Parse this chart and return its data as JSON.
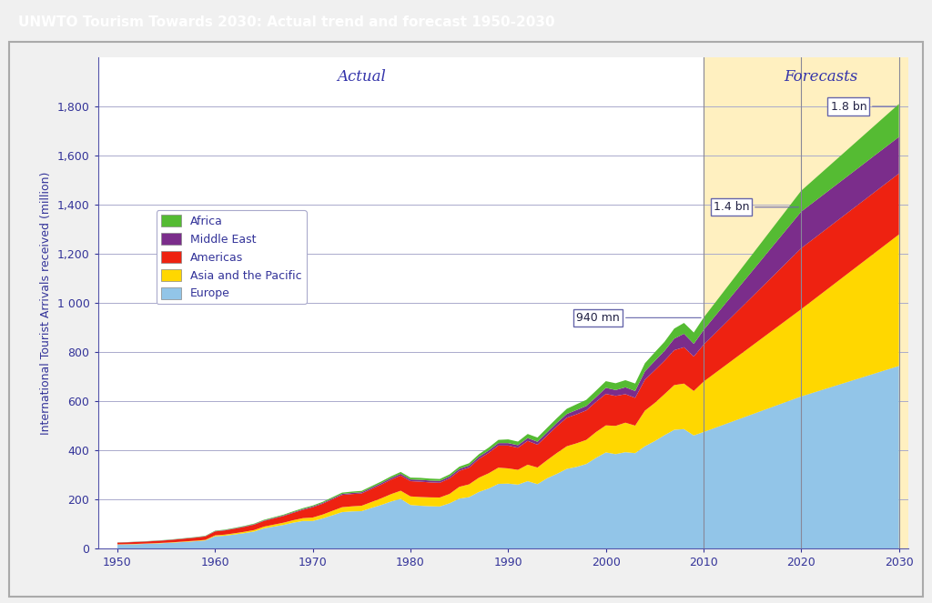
{
  "title": "UNWTO Tourism Towards 2030: Actual trend and forecast 1950-2030",
  "title_bg_color": "#8B1A2A",
  "title_text_color": "#FFFFFF",
  "ylabel": "International Tourist Arrivals received (million)",
  "years": [
    1950,
    1951,
    1952,
    1953,
    1954,
    1955,
    1956,
    1957,
    1958,
    1959,
    1960,
    1961,
    1962,
    1963,
    1964,
    1965,
    1966,
    1967,
    1968,
    1969,
    1970,
    1971,
    1972,
    1973,
    1974,
    1975,
    1976,
    1977,
    1978,
    1979,
    1980,
    1981,
    1982,
    1983,
    1984,
    1985,
    1986,
    1987,
    1988,
    1989,
    1990,
    1991,
    1992,
    1993,
    1994,
    1995,
    1996,
    1997,
    1998,
    1999,
    2000,
    2001,
    2002,
    2003,
    2004,
    2005,
    2006,
    2007,
    2008,
    2009,
    2010,
    2020,
    2030
  ],
  "europe": [
    16.8,
    17.6,
    18.6,
    20.0,
    21.5,
    23.3,
    25.5,
    28.0,
    30.5,
    33.5,
    50.4,
    53.0,
    58.0,
    63.5,
    70.0,
    83.0,
    90.0,
    97.0,
    106.0,
    113.0,
    113.0,
    123.0,
    136.0,
    149.0,
    152.0,
    153.0,
    166.0,
    178.0,
    192.0,
    203.0,
    178.0,
    175.0,
    173.0,
    172.0,
    185.0,
    204.0,
    210.0,
    231.0,
    245.0,
    264.0,
    265.0,
    261.0,
    275.0,
    263.0,
    287.0,
    305.0,
    325.0,
    333.0,
    345.0,
    370.0,
    392.0,
    385.0,
    393.0,
    389.0,
    417.0,
    438.0,
    462.0,
    484.0,
    487.0,
    461.0,
    475.0,
    620.0,
    744.0
  ],
  "asia_pacific": [
    1.0,
    1.1,
    1.2,
    1.3,
    1.4,
    1.5,
    1.7,
    2.0,
    2.2,
    2.5,
    4.0,
    4.5,
    5.0,
    5.5,
    6.0,
    7.0,
    8.0,
    9.0,
    10.0,
    11.5,
    14.0,
    16.0,
    18.0,
    20.0,
    20.5,
    22.0,
    24.0,
    27.0,
    30.0,
    33.0,
    35.0,
    35.5,
    36.0,
    36.5,
    38.0,
    48.0,
    52.0,
    58.0,
    62.0,
    66.0,
    62.0,
    60.0,
    67.0,
    67.5,
    74.0,
    85.0,
    92.0,
    96.0,
    98.0,
    105.0,
    110.0,
    115.0,
    120.0,
    112.0,
    145.0,
    155.0,
    167.0,
    182.0,
    185.0,
    181.0,
    205.0,
    355.0,
    535.0
  ],
  "americas": [
    7.0,
    7.3,
    7.8,
    8.2,
    8.8,
    9.5,
    10.5,
    11.5,
    12.5,
    14.0,
    16.0,
    17.0,
    18.5,
    20.0,
    22.0,
    23.0,
    25.0,
    27.0,
    30.0,
    34.0,
    42.0,
    44.0,
    47.0,
    50.0,
    50.0,
    50.0,
    53.0,
    56.0,
    59.0,
    62.0,
    62.0,
    62.5,
    61.0,
    60.0,
    63.0,
    65.0,
    68.0,
    76.0,
    83.0,
    90.0,
    93.0,
    90.0,
    97.0,
    93.0,
    100.0,
    109.0,
    116.0,
    118.0,
    120.0,
    123.0,
    128.0,
    122.0,
    116.0,
    113.0,
    126.0,
    133.0,
    136.0,
    142.0,
    148.0,
    140.0,
    150.0,
    248.0,
    248.0
  ],
  "middle_east": [
    0.5,
    0.5,
    0.6,
    0.6,
    0.7,
    0.8,
    0.9,
    1.0,
    1.1,
    1.2,
    1.3,
    1.4,
    1.5,
    1.7,
    1.9,
    2.1,
    2.3,
    2.5,
    2.8,
    3.0,
    3.2,
    3.5,
    3.8,
    4.2,
    4.5,
    5.0,
    5.5,
    6.0,
    6.5,
    7.0,
    7.0,
    7.5,
    7.5,
    7.5,
    8.0,
    8.0,
    8.5,
    9.0,
    9.5,
    10.0,
    10.0,
    10.5,
    11.5,
    12.0,
    13.0,
    14.0,
    15.5,
    17.5,
    18.0,
    19.0,
    25.0,
    24.0,
    28.0,
    28.0,
    34.0,
    38.0,
    40.0,
    47.0,
    55.0,
    52.0,
    60.0,
    149.0,
    149.0
  ],
  "africa": [
    0.5,
    0.5,
    0.6,
    0.7,
    0.8,
    0.9,
    1.0,
    1.1,
    1.3,
    1.5,
    1.7,
    1.8,
    2.0,
    2.2,
    2.4,
    2.6,
    2.9,
    3.2,
    3.5,
    3.8,
    3.8,
    4.2,
    4.7,
    5.2,
    5.4,
    5.5,
    6.0,
    6.5,
    7.0,
    7.5,
    7.5,
    8.0,
    7.9,
    7.8,
    8.5,
    9.0,
    9.5,
    10.5,
    12.0,
    13.0,
    15.0,
    14.5,
    16.5,
    17.0,
    18.5,
    19.0,
    21.0,
    23.5,
    25.0,
    26.5,
    27.0,
    27.5,
    29.0,
    30.5,
    33.0,
    35.0,
    37.0,
    41.0,
    44.0,
    46.0,
    50.0,
    85.0,
    134.0
  ],
  "forecast_start_year": 2010,
  "forecast_bg_color": "#FFF0C0",
  "actual_label_color": "#3333AA",
  "forecast_label_color": "#3333AA",
  "europe_color": "#92C5E8",
  "asia_pacific_color": "#FFD700",
  "americas_color": "#EE2211",
  "middle_east_color": "#7B2D8B",
  "africa_color": "#55BB33",
  "legend_labels": [
    "Africa",
    "Middle East",
    "Americas",
    "Asia and the Pacific",
    "Europe"
  ],
  "ylim": [
    0,
    2000
  ],
  "ytick_values": [
    0,
    200,
    400,
    600,
    800,
    1000,
    1200,
    1400,
    1600,
    1800
  ],
  "ytick_labels": [
    "0",
    "200",
    "400",
    "600",
    "800",
    "1 000",
    "1,200",
    "1,400",
    "1,600",
    "1,800"
  ],
  "xticks": [
    1950,
    1960,
    1970,
    1980,
    1990,
    2000,
    2010,
    2020,
    2030
  ],
  "outer_bg_color": "#F0F0F0",
  "plot_bg_color": "#FFFFFF",
  "grid_color": "#AAAACC",
  "border_color": "#AAAACC",
  "tick_label_color": "#333399",
  "ylabel_color": "#333399",
  "spine_color": "#5555AA"
}
